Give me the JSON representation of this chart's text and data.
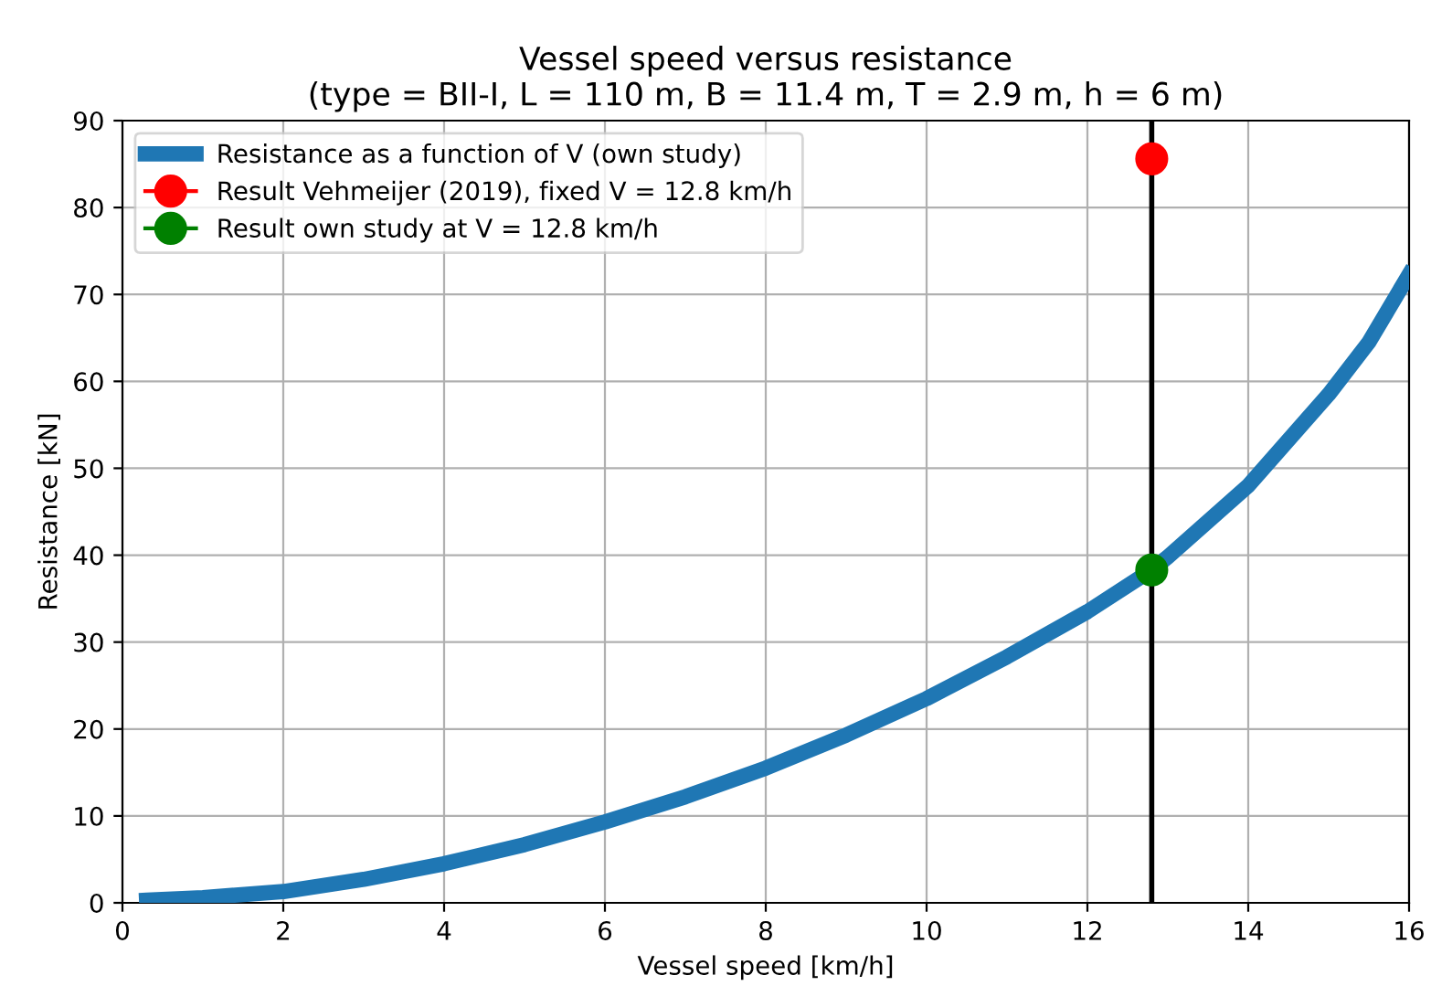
{
  "chart_data": {
    "type": "line",
    "title": "Vessel speed versus resistance\n(type = BII-I, L = 110 m, B = 11.4 m, T = 2.9 m, h = 6 m)",
    "xlabel": "Vessel speed [km/h]",
    "ylabel": "Resistance [kN]",
    "xlim": [
      0,
      16
    ],
    "ylim": [
      0,
      90
    ],
    "xticks": [
      0,
      2,
      4,
      6,
      8,
      10,
      12,
      14,
      16
    ],
    "yticks": [
      0,
      10,
      20,
      30,
      40,
      50,
      60,
      70,
      80,
      90
    ],
    "grid": true,
    "legend": "top left",
    "ref_lines": [
      {
        "axis": "x",
        "value": 12.8,
        "color": "#000000"
      }
    ],
    "series": [
      {
        "name": "Resistance as a function of V (own study)",
        "color": "#1f77b4",
        "marker": "none",
        "x": [
          0.3,
          1,
          2,
          3,
          4,
          5,
          6,
          7,
          8,
          9,
          10,
          11,
          12,
          12.8,
          13,
          14,
          15,
          15.5,
          16
        ],
        "values": [
          0.3,
          0.6,
          1.3,
          2.7,
          4.5,
          6.7,
          9.3,
          12.2,
          15.5,
          19.3,
          23.5,
          28.3,
          33.5,
          38.3,
          39.8,
          48,
          58.5,
          64.5,
          72.3
        ]
      },
      {
        "name": "Result Vehmeijer (2019), fixed V = 12.8 km/h",
        "type": "line",
        "color": "#ff0000",
        "marker": "circle",
        "x": [
          12.8
        ],
        "values": [
          85.6
        ]
      },
      {
        "name": "Result own study at V = 12.8 km/h",
        "type": "line",
        "color": "#008000",
        "marker": "circle",
        "x": [
          12.8
        ],
        "values": [
          38.3
        ]
      }
    ]
  }
}
